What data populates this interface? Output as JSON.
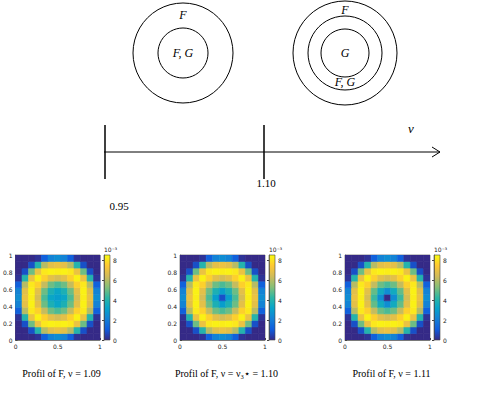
{
  "diagram": {
    "axis_label": "ν",
    "ticks": [
      "0.95",
      "1.10"
    ],
    "regions": [
      {
        "circles": [
          {
            "label": "F"
          },
          {
            "label": "F, G"
          }
        ]
      },
      {
        "circles": [
          {
            "label": "F"
          },
          {
            "label": "F, G"
          },
          {
            "label": "G"
          }
        ]
      }
    ]
  },
  "chart_data": [
    {
      "type": "heatmap",
      "title": "Profil of F, ν = 1.09",
      "x": [
        0.038,
        0.115,
        0.192,
        0.269,
        0.346,
        0.423,
        0.5,
        0.577,
        0.654,
        0.731,
        0.808,
        0.885,
        0.962
      ],
      "y": [
        0.038,
        0.115,
        0.192,
        0.269,
        0.346,
        0.423,
        0.5,
        0.577,
        0.654,
        0.731,
        0.808,
        0.885,
        0.962
      ],
      "z": [
        [
          0,
          0,
          0,
          0.2,
          1.2,
          2.2,
          2.5,
          2.2,
          1.2,
          0.2,
          0,
          0,
          0
        ],
        [
          0,
          0,
          0.8,
          4.0,
          6.0,
          6.8,
          7.0,
          6.8,
          6.0,
          4.0,
          0.8,
          0,
          0
        ],
        [
          0,
          0.8,
          5.0,
          7.0,
          8.1,
          8.3,
          8.2,
          8.3,
          8.1,
          7.0,
          5.0,
          0.8,
          0
        ],
        [
          0.2,
          4.0,
          7.0,
          8.3,
          7.6,
          6.8,
          6.5,
          6.8,
          7.6,
          8.3,
          7.0,
          4.0,
          0.2
        ],
        [
          1.2,
          6.0,
          8.1,
          7.6,
          6.2,
          5.0,
          4.6,
          5.0,
          6.2,
          7.6,
          8.1,
          6.0,
          1.2
        ],
        [
          2.2,
          6.8,
          8.3,
          6.8,
          5.0,
          3.8,
          3.3,
          3.8,
          5.0,
          6.8,
          8.3,
          6.8,
          2.2
        ],
        [
          2.5,
          7.0,
          8.2,
          6.5,
          4.6,
          3.3,
          3.0,
          3.3,
          4.6,
          6.5,
          8.2,
          7.0,
          2.5
        ],
        [
          2.2,
          6.8,
          8.3,
          6.8,
          5.0,
          3.8,
          3.3,
          3.8,
          5.0,
          6.8,
          8.3,
          6.8,
          2.2
        ],
        [
          1.2,
          6.0,
          8.1,
          7.6,
          6.2,
          5.0,
          4.6,
          5.0,
          6.2,
          7.6,
          8.1,
          6.0,
          1.2
        ],
        [
          0.2,
          4.0,
          7.0,
          8.3,
          7.6,
          6.8,
          6.5,
          6.8,
          7.6,
          8.3,
          7.0,
          4.0,
          0.2
        ],
        [
          0,
          0.8,
          5.0,
          7.0,
          8.1,
          8.3,
          8.2,
          8.3,
          8.1,
          7.0,
          5.0,
          0.8,
          0
        ],
        [
          0,
          0,
          0.8,
          4.0,
          6.0,
          6.8,
          7.0,
          6.8,
          6.0,
          4.0,
          0.8,
          0,
          0
        ],
        [
          0,
          0,
          0,
          0.2,
          1.2,
          2.2,
          2.5,
          2.2,
          1.2,
          0.2,
          0,
          0,
          0
        ]
      ],
      "xlim": [
        0,
        1
      ],
      "ylim": [
        0,
        1
      ],
      "xticks": [
        0,
        0.5,
        1
      ],
      "yticks": [
        0,
        0.2,
        0.4,
        0.6,
        0.8,
        1
      ],
      "colorbar": {
        "range": [
          0,
          8.5
        ],
        "ticks": [
          0,
          2,
          4,
          6,
          8
        ],
        "exponent": "10⁻³"
      }
    },
    {
      "type": "heatmap",
      "title": "Profil of F, ν = ν₃⋆ = 1.10",
      "x": [
        0.038,
        0.115,
        0.192,
        0.269,
        0.346,
        0.423,
        0.5,
        0.577,
        0.654,
        0.731,
        0.808,
        0.885,
        0.962
      ],
      "y": [
        0.038,
        0.115,
        0.192,
        0.269,
        0.346,
        0.423,
        0.5,
        0.577,
        0.654,
        0.731,
        0.808,
        0.885,
        0.962
      ],
      "z": [
        [
          0,
          0,
          0,
          0.2,
          1.2,
          2.2,
          2.5,
          2.2,
          1.2,
          0.2,
          0,
          0,
          0
        ],
        [
          0,
          0,
          0.8,
          4.0,
          6.0,
          6.8,
          7.0,
          6.8,
          6.0,
          4.0,
          0.8,
          0,
          0
        ],
        [
          0,
          0.8,
          5.0,
          7.0,
          8.1,
          8.3,
          8.2,
          8.3,
          8.1,
          7.0,
          5.0,
          0.8,
          0
        ],
        [
          0.2,
          4.0,
          7.0,
          8.3,
          7.6,
          6.8,
          6.5,
          6.8,
          7.6,
          8.3,
          7.0,
          4.0,
          0.2
        ],
        [
          1.2,
          6.0,
          8.1,
          7.6,
          6.2,
          5.0,
          4.6,
          5.0,
          6.2,
          7.6,
          8.1,
          6.0,
          1.2
        ],
        [
          2.2,
          6.8,
          8.3,
          6.8,
          5.0,
          3.8,
          3.0,
          3.8,
          5.0,
          6.8,
          8.3,
          6.8,
          2.2
        ],
        [
          2.5,
          7.0,
          8.2,
          6.5,
          4.6,
          3.0,
          0.8,
          3.0,
          4.6,
          6.5,
          8.2,
          7.0,
          2.5
        ],
        [
          2.2,
          6.8,
          8.3,
          6.8,
          5.0,
          3.8,
          3.0,
          3.8,
          5.0,
          6.8,
          8.3,
          6.8,
          2.2
        ],
        [
          1.2,
          6.0,
          8.1,
          7.6,
          6.2,
          5.0,
          4.6,
          5.0,
          6.2,
          7.6,
          8.1,
          6.0,
          1.2
        ],
        [
          0.2,
          4.0,
          7.0,
          8.3,
          7.6,
          6.8,
          6.5,
          6.8,
          7.6,
          8.3,
          7.0,
          4.0,
          0.2
        ],
        [
          0,
          0.8,
          5.0,
          7.0,
          8.1,
          8.3,
          8.2,
          8.3,
          8.1,
          7.0,
          5.0,
          0.8,
          0
        ],
        [
          0,
          0,
          0.8,
          4.0,
          6.0,
          6.8,
          7.0,
          6.8,
          6.0,
          4.0,
          0.8,
          0,
          0
        ],
        [
          0,
          0,
          0,
          0.2,
          1.2,
          2.2,
          2.5,
          2.2,
          1.2,
          0.2,
          0,
          0,
          0
        ]
      ],
      "xlim": [
        0,
        1
      ],
      "ylim": [
        0,
        1
      ],
      "xticks": [
        0,
        0.5,
        1
      ],
      "yticks": [
        0,
        0.2,
        0.4,
        0.6,
        0.8,
        1
      ],
      "colorbar": {
        "range": [
          0,
          8.5
        ],
        "ticks": [
          0,
          2,
          4,
          6,
          8
        ],
        "exponent": "10⁻³"
      }
    },
    {
      "type": "heatmap",
      "title": "Profil of F, ν = 1.11",
      "x": [
        0.038,
        0.115,
        0.192,
        0.269,
        0.346,
        0.423,
        0.5,
        0.577,
        0.654,
        0.731,
        0.808,
        0.885,
        0.962
      ],
      "y": [
        0.038,
        0.115,
        0.192,
        0.269,
        0.346,
        0.423,
        0.5,
        0.577,
        0.654,
        0.731,
        0.808,
        0.885,
        0.962
      ],
      "z": [
        [
          0,
          0,
          0,
          0.2,
          1.2,
          2.2,
          2.5,
          2.2,
          1.2,
          0.2,
          0,
          0,
          0
        ],
        [
          0,
          0,
          0.8,
          4.0,
          6.0,
          6.8,
          7.0,
          6.8,
          6.0,
          4.0,
          0.8,
          0,
          0
        ],
        [
          0,
          0.8,
          5.0,
          7.0,
          8.1,
          8.3,
          8.2,
          8.3,
          8.1,
          7.0,
          5.0,
          0.8,
          0
        ],
        [
          0.2,
          4.0,
          7.0,
          8.3,
          7.6,
          6.8,
          6.5,
          6.8,
          7.6,
          8.3,
          7.0,
          4.0,
          0.2
        ],
        [
          1.2,
          6.0,
          8.1,
          7.6,
          6.2,
          5.0,
          4.6,
          5.0,
          6.2,
          7.6,
          8.1,
          6.0,
          1.2
        ],
        [
          2.2,
          6.8,
          8.3,
          6.8,
          4.9,
          3.5,
          2.5,
          3.5,
          4.9,
          6.8,
          8.3,
          6.8,
          2.2
        ],
        [
          2.5,
          7.0,
          8.2,
          6.5,
          4.4,
          2.5,
          0,
          2.5,
          4.4,
          6.5,
          8.2,
          7.0,
          2.5
        ],
        [
          2.2,
          6.8,
          8.3,
          6.8,
          4.9,
          3.5,
          2.5,
          3.5,
          4.9,
          6.8,
          8.3,
          6.8,
          2.2
        ],
        [
          1.2,
          6.0,
          8.1,
          7.6,
          6.2,
          5.0,
          4.6,
          5.0,
          6.2,
          7.6,
          8.1,
          6.0,
          1.2
        ],
        [
          0.2,
          4.0,
          7.0,
          8.3,
          7.6,
          6.8,
          6.5,
          6.8,
          7.6,
          8.3,
          7.0,
          4.0,
          0.2
        ],
        [
          0,
          0.8,
          5.0,
          7.0,
          8.1,
          8.3,
          8.2,
          8.3,
          8.1,
          7.0,
          5.0,
          0.8,
          0
        ],
        [
          0,
          0,
          0.8,
          4.0,
          6.0,
          6.8,
          7.0,
          6.8,
          6.0,
          4.0,
          0.8,
          0,
          0
        ],
        [
          0,
          0,
          0,
          0.2,
          1.2,
          2.2,
          2.5,
          2.2,
          1.2,
          0.2,
          0,
          0,
          0
        ]
      ],
      "xlim": [
        0,
        1
      ],
      "ylim": [
        0,
        1
      ],
      "xticks": [
        0,
        0.5,
        1
      ],
      "yticks": [
        0,
        0.2,
        0.4,
        0.6,
        0.8,
        1
      ],
      "colorbar": {
        "range": [
          0,
          8.5
        ],
        "ticks": [
          0,
          2,
          4,
          6,
          8
        ],
        "exponent": "10⁻³"
      }
    }
  ]
}
